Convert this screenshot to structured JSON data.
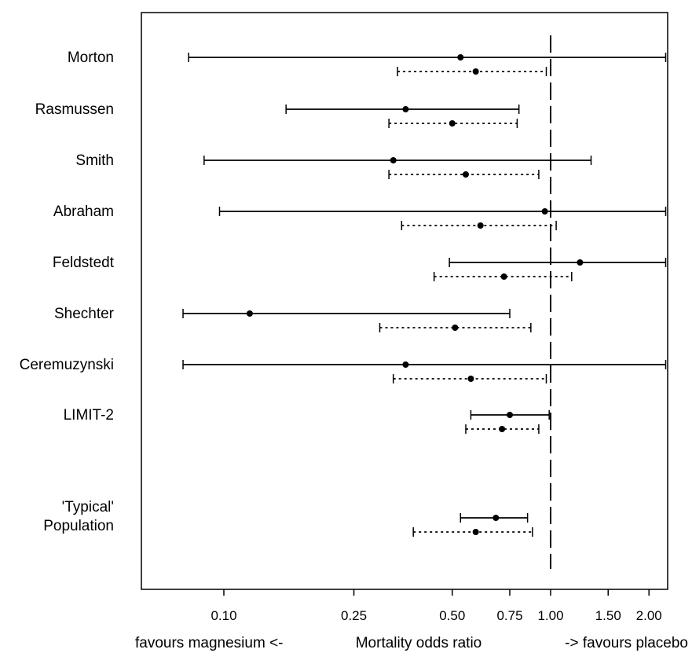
{
  "chart_data": {
    "type": "forest",
    "title": "",
    "xlabel": {
      "left": "favours magnesium  <-",
      "center": "Mortality odds ratio",
      "right": "->  favours placebo"
    },
    "x_scale": "log",
    "xlim": [
      0.075,
      2.25
    ],
    "reference_line": 1.0,
    "ticks": [
      {
        "value": 0.1,
        "label": "0.10"
      },
      {
        "value": 0.25,
        "label": "0.25"
      },
      {
        "value": 0.5,
        "label": "0.50"
      },
      {
        "value": 0.75,
        "label": "0.75"
      },
      {
        "value": 1.0,
        "label": "1.00"
      },
      {
        "value": 1.5,
        "label": "1.50"
      },
      {
        "value": 2.0,
        "label": "2.00"
      }
    ],
    "series": [
      {
        "style": "solid"
      },
      {
        "style": "dotted"
      }
    ],
    "studies": [
      {
        "label": [
          "Morton"
        ],
        "solid": {
          "est": 0.53,
          "lo": 0.078,
          "hi": 2.25
        },
        "dotted": {
          "est": 0.59,
          "lo": 0.34,
          "hi": 0.97
        }
      },
      {
        "label": [
          "Rasmussen"
        ],
        "solid": {
          "est": 0.36,
          "lo": 0.155,
          "hi": 0.8
        },
        "dotted": {
          "est": 0.5,
          "lo": 0.32,
          "hi": 0.79
        }
      },
      {
        "label": [
          "Smith"
        ],
        "solid": {
          "est": 0.33,
          "lo": 0.087,
          "hi": 1.33
        },
        "dotted": {
          "est": 0.55,
          "lo": 0.32,
          "hi": 0.92
        }
      },
      {
        "label": [
          "Abraham"
        ],
        "solid": {
          "est": 0.96,
          "lo": 0.097,
          "hi": 2.25
        },
        "dotted": {
          "est": 0.61,
          "lo": 0.35,
          "hi": 1.04
        }
      },
      {
        "label": [
          "Feldstedt"
        ],
        "solid": {
          "est": 1.23,
          "lo": 0.49,
          "hi": 2.25
        },
        "dotted": {
          "est": 0.72,
          "lo": 0.44,
          "hi": 1.16
        }
      },
      {
        "label": [
          "Shechter"
        ],
        "solid": {
          "est": 0.12,
          "lo": 0.075,
          "hi": 0.75
        },
        "dotted": {
          "est": 0.51,
          "lo": 0.3,
          "hi": 0.87
        }
      },
      {
        "label": [
          "Ceremuzynski"
        ],
        "solid": {
          "est": 0.36,
          "lo": 0.075,
          "hi": 2.25
        },
        "dotted": {
          "est": 0.57,
          "lo": 0.33,
          "hi": 0.97
        }
      },
      {
        "label": [
          "LIMIT-2"
        ],
        "solid": {
          "est": 0.75,
          "lo": 0.57,
          "hi": 0.99
        },
        "dotted": {
          "est": 0.71,
          "lo": 0.55,
          "hi": 0.92
        }
      },
      {
        "label": [
          "'Typical'",
          "Population"
        ],
        "solid": {
          "est": 0.68,
          "lo": 0.53,
          "hi": 0.85
        },
        "dotted": {
          "est": 0.59,
          "lo": 0.38,
          "hi": 0.88
        }
      }
    ]
  }
}
